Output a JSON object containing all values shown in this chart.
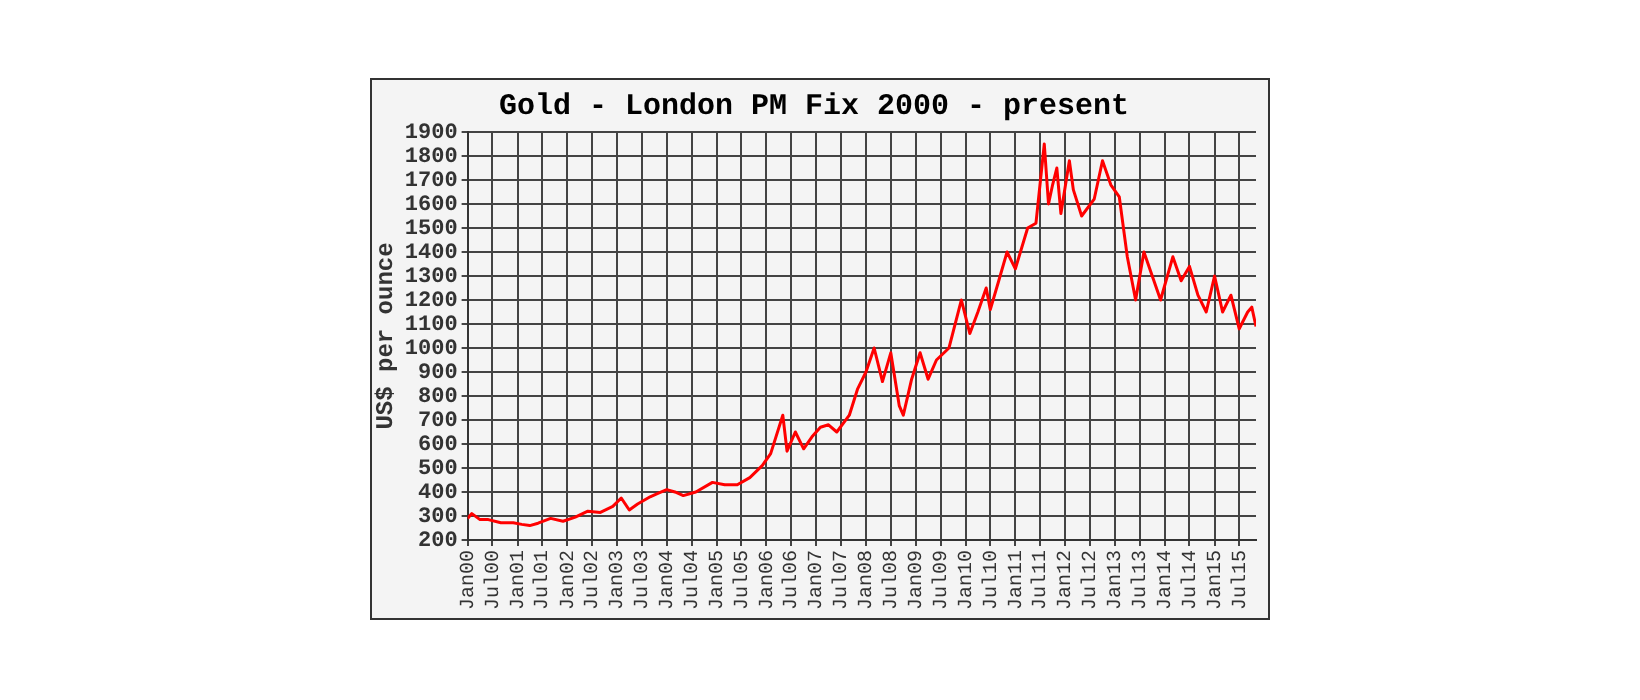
{
  "chart_data": {
    "type": "line",
    "title": "Gold - London PM Fix 2000 - present",
    "ylabel": "US$ per ounce",
    "x": [
      "2000-01",
      "2000-02",
      "2000-04",
      "2000-06",
      "2000-09",
      "2000-12",
      "2001-02",
      "2001-04",
      "2001-06",
      "2001-09",
      "2001-12",
      "2002-03",
      "2002-06",
      "2002-09",
      "2002-12",
      "2003-02",
      "2003-04",
      "2003-06",
      "2003-09",
      "2003-11",
      "2004-01",
      "2004-03",
      "2004-05",
      "2004-08",
      "2004-12",
      "2005-03",
      "2005-06",
      "2005-09",
      "2005-12",
      "2006-02",
      "2006-05",
      "2006-06",
      "2006-08",
      "2006-10",
      "2006-12",
      "2007-02",
      "2007-04",
      "2007-06",
      "2007-09",
      "2007-11",
      "2008-01",
      "2008-03",
      "2008-05",
      "2008-07",
      "2008-09",
      "2008-10",
      "2008-12",
      "2009-02",
      "2009-04",
      "2009-06",
      "2009-09",
      "2009-12",
      "2010-02",
      "2010-04",
      "2010-06",
      "2010-07",
      "2010-09",
      "2010-11",
      "2011-01",
      "2011-04",
      "2011-06",
      "2011-08",
      "2011-09",
      "2011-10",
      "2011-11",
      "2011-12",
      "2012-02",
      "2012-03",
      "2012-05",
      "2012-08",
      "2012-10",
      "2012-12",
      "2013-02",
      "2013-04",
      "2013-06",
      "2013-08",
      "2013-10",
      "2013-12",
      "2014-03",
      "2014-05",
      "2014-07",
      "2014-09",
      "2014-11",
      "2015-01",
      "2015-03",
      "2015-05",
      "2015-07",
      "2015-09",
      "2015-10",
      "2015-11"
    ],
    "values": [
      290,
      310,
      285,
      285,
      272,
      272,
      265,
      260,
      270,
      290,
      278,
      295,
      320,
      315,
      340,
      375,
      325,
      350,
      380,
      395,
      410,
      400,
      385,
      400,
      440,
      430,
      430,
      460,
      510,
      560,
      720,
      570,
      650,
      580,
      630,
      670,
      680,
      650,
      720,
      830,
      900,
      1000,
      860,
      980,
      760,
      720,
      870,
      980,
      870,
      950,
      1000,
      1200,
      1060,
      1150,
      1250,
      1160,
      1280,
      1400,
      1330,
      1500,
      1520,
      1850,
      1600,
      1680,
      1750,
      1560,
      1780,
      1660,
      1550,
      1620,
      1780,
      1680,
      1630,
      1380,
      1200,
      1400,
      1300,
      1200,
      1380,
      1280,
      1340,
      1220,
      1150,
      1300,
      1150,
      1220,
      1080,
      1150,
      1170,
      1090
    ],
    "color": "#ff0000",
    "xlim": [
      "2000-01",
      "2015-11"
    ],
    "xticks": [
      {
        "value": "2000-01",
        "label": "Jan00"
      },
      {
        "value": "2000-07",
        "label": "Jul00"
      },
      {
        "value": "2001-01",
        "label": "Jan01"
      },
      {
        "value": "2001-07",
        "label": "Jul01"
      },
      {
        "value": "2002-01",
        "label": "Jan02"
      },
      {
        "value": "2002-07",
        "label": "Jul02"
      },
      {
        "value": "2003-01",
        "label": "Jan03"
      },
      {
        "value": "2003-07",
        "label": "Jul03"
      },
      {
        "value": "2004-01",
        "label": "Jan04"
      },
      {
        "value": "2004-07",
        "label": "Jul04"
      },
      {
        "value": "2005-01",
        "label": "Jan05"
      },
      {
        "value": "2005-07",
        "label": "Jul05"
      },
      {
        "value": "2006-01",
        "label": "Jan06"
      },
      {
        "value": "2006-07",
        "label": "Jul06"
      },
      {
        "value": "2007-01",
        "label": "Jan07"
      },
      {
        "value": "2007-07",
        "label": "Jul07"
      },
      {
        "value": "2008-01",
        "label": "Jan08"
      },
      {
        "value": "2008-07",
        "label": "Jul08"
      },
      {
        "value": "2009-01",
        "label": "Jan09"
      },
      {
        "value": "2009-07",
        "label": "Jul09"
      },
      {
        "value": "2010-01",
        "label": "Jan10"
      },
      {
        "value": "2010-07",
        "label": "Jul10"
      },
      {
        "value": "2011-01",
        "label": "Jan11"
      },
      {
        "value": "2011-07",
        "label": "Jul11"
      },
      {
        "value": "2012-01",
        "label": "Jan12"
      },
      {
        "value": "2012-07",
        "label": "Jul12"
      },
      {
        "value": "2013-01",
        "label": "Jan13"
      },
      {
        "value": "2013-07",
        "label": "Jul13"
      },
      {
        "value": "2014-01",
        "label": "Jan14"
      },
      {
        "value": "2014-07",
        "label": "Jul14"
      },
      {
        "value": "2015-01",
        "label": "Jan15"
      },
      {
        "value": "2015-07",
        "label": "Jul15"
      }
    ],
    "ylim": [
      200,
      1900
    ],
    "yticks": [
      200,
      300,
      400,
      500,
      600,
      700,
      800,
      900,
      1000,
      1100,
      1200,
      1300,
      1400,
      1500,
      1600,
      1700,
      1800,
      1900
    ],
    "grid": true,
    "marker": "none",
    "line_style": "solid",
    "legend": false
  }
}
